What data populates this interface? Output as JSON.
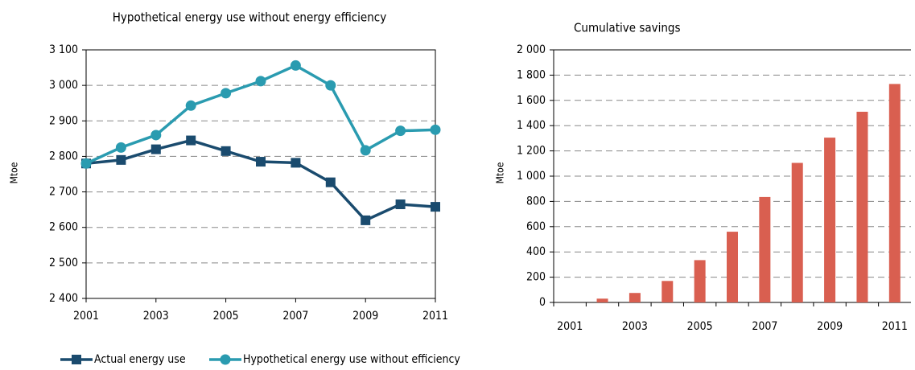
{
  "chart_data": [
    {
      "type": "line",
      "title": "Hypothetical energy use without energy efficiency",
      "y_label": "Mtoe",
      "x": [
        2001,
        2002,
        2003,
        2004,
        2005,
        2006,
        2007,
        2008,
        2009,
        2010,
        2011
      ],
      "xlim": [
        2001,
        2011
      ],
      "xticks": [
        2001,
        2003,
        2005,
        2007,
        2009,
        2011
      ],
      "ylim": [
        2400,
        3100
      ],
      "yticks": [
        {
          "value": 2400,
          "label": "2 400"
        },
        {
          "value": 2500,
          "label": "2 500"
        },
        {
          "value": 2600,
          "label": "2 600"
        },
        {
          "value": 2700,
          "label": "2 700"
        },
        {
          "value": 2800,
          "label": "2 800"
        },
        {
          "value": 2900,
          "label": "2 900"
        },
        {
          "value": 3000,
          "label": "3 000"
        },
        {
          "value": 3100,
          "label": "3 100"
        }
      ],
      "grid": true,
      "legend": "bottom",
      "series": [
        {
          "name": "Actual energy use",
          "color": "#1a4b6e",
          "marker": "square",
          "values": [
            2780,
            2790,
            2820,
            2845,
            2815,
            2785,
            2782,
            2727,
            2620,
            2665,
            2658
          ]
        },
        {
          "name": "Hypothetical energy use without efficiency",
          "color": "#2a9bb0",
          "marker": "circle",
          "values": [
            2780,
            2825,
            2860,
            2943,
            2978,
            3012,
            3056,
            3000,
            2817,
            2872,
            2875
          ]
        }
      ]
    },
    {
      "type": "bar",
      "title": "Cumulative savings",
      "y_label": "Mtoe",
      "categories": [
        "2001",
        null,
        "2003",
        null,
        "2005",
        null,
        "2007",
        null,
        "2009",
        null,
        "2011"
      ],
      "values": [
        0,
        30,
        75,
        170,
        335,
        560,
        835,
        1105,
        1305,
        1510,
        1730
      ],
      "color": "#d95f50",
      "ylim": [
        0,
        2000
      ],
      "yticks": [
        0,
        200,
        400,
        600,
        800,
        {
          "value": 1000,
          "label": "1 000"
        },
        {
          "value": 1200,
          "label": "1 200"
        },
        {
          "value": 1400,
          "label": "1 400"
        },
        {
          "value": 1600,
          "label": "1 600"
        },
        {
          "value": 1800,
          "label": "1 800"
        },
        {
          "value": 2000,
          "label": "2 000"
        }
      ],
      "grid": true
    }
  ]
}
